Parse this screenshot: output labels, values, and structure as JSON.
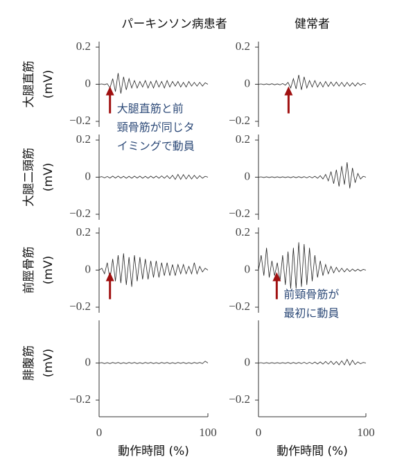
{
  "chart_data": [
    {
      "type": "line",
      "title": "パーキンソン病患者",
      "ylabel": [
        "大腿直筋",
        "(mV)"
      ],
      "color": "#222222",
      "ylim": [
        -0.2,
        0.2
      ],
      "yticks": [
        0.2,
        0,
        {
          "value": -0.2,
          "label": "−0.2"
        }
      ],
      "xlim": [
        0,
        100
      ],
      "x": [
        0,
        2.5,
        5,
        7.5,
        10,
        12.5,
        15,
        17.5,
        20,
        22.5,
        25,
        27.5,
        30,
        32.5,
        35,
        37.5,
        40,
        42.5,
        45,
        47.5,
        50,
        52.5,
        55,
        57.5,
        60,
        62.5,
        65,
        67.5,
        70,
        72.5,
        75,
        77.5,
        80,
        82.5,
        85,
        87.5,
        90,
        92.5,
        95,
        97.5,
        100
      ],
      "values": [
        0,
        0.002,
        -0.002,
        0.003,
        -0.02,
        0.03,
        -0.04,
        0.06,
        -0.05,
        0.04,
        -0.03,
        0.03,
        -0.02,
        0.02,
        -0.02,
        0.015,
        -0.015,
        0.02,
        -0.02,
        0.015,
        -0.02,
        0.02,
        -0.015,
        0.015,
        -0.02,
        0.02,
        -0.015,
        0.015,
        -0.01,
        0.015,
        -0.015,
        0.01,
        -0.015,
        0.015,
        -0.01,
        0.01,
        -0.01,
        0.01,
        -0.01,
        0.008,
        0
      ],
      "annotation": {
        "lines": [
          "大腿直筋と前",
          "頸骨筋が同じタ",
          "イミングで動員"
        ],
        "arrow_x": 10
      }
    },
    {
      "type": "line",
      "title": "健常者",
      "color": "#222222",
      "ylim": [
        -0.2,
        0.2
      ],
      "yticks": [
        0.2,
        0,
        {
          "value": -0.2,
          "label": "−0.2"
        }
      ],
      "xlim": [
        0,
        100
      ],
      "x": [
        0,
        2.5,
        5,
        7.5,
        10,
        12.5,
        15,
        17.5,
        20,
        22.5,
        25,
        27.5,
        30,
        32.5,
        35,
        37.5,
        40,
        42.5,
        45,
        47.5,
        50,
        52.5,
        55,
        57.5,
        60,
        62.5,
        65,
        67.5,
        70,
        72.5,
        75,
        77.5,
        80,
        82.5,
        85,
        87.5,
        90,
        92.5,
        95,
        97.5,
        100
      ],
      "values": [
        0,
        0.002,
        -0.002,
        0.002,
        -0.002,
        0.003,
        -0.003,
        0.002,
        -0.003,
        0.004,
        -0.005,
        0.01,
        -0.02,
        0.03,
        -0.025,
        0.05,
        -0.03,
        0.04,
        -0.02,
        0.02,
        -0.015,
        0.02,
        -0.015,
        0.012,
        -0.015,
        0.015,
        -0.012,
        0.012,
        -0.01,
        0.012,
        -0.01,
        0.01,
        -0.012,
        0.01,
        -0.01,
        0.008,
        -0.01,
        0.008,
        -0.006,
        0.005,
        0
      ],
      "annotation": {
        "arrow_x": 28
      }
    },
    {
      "type": "line",
      "ylabel": [
        "大腿二頭筋",
        "(mV)"
      ],
      "color": "#222222",
      "ylim": [
        -0.2,
        0.2
      ],
      "yticks": [
        0.2,
        0,
        {
          "value": -0.2,
          "label": "−0.2"
        }
      ],
      "xlim": [
        0,
        100
      ],
      "x": [
        0,
        2.5,
        5,
        7.5,
        10,
        12.5,
        15,
        17.5,
        20,
        22.5,
        25,
        27.5,
        30,
        32.5,
        35,
        37.5,
        40,
        42.5,
        45,
        47.5,
        50,
        52.5,
        55,
        57.5,
        60,
        62.5,
        65,
        67.5,
        70,
        72.5,
        75,
        77.5,
        80,
        82.5,
        85,
        87.5,
        90,
        92.5,
        95,
        97.5,
        100
      ],
      "values": [
        0,
        0.003,
        -0.004,
        0.004,
        -0.005,
        0.006,
        -0.005,
        0.006,
        -0.005,
        0.005,
        -0.006,
        0.005,
        -0.006,
        0.006,
        -0.005,
        0.006,
        -0.006,
        0.005,
        -0.006,
        0.006,
        -0.005,
        0.006,
        -0.006,
        0.007,
        -0.006,
        0.008,
        -0.008,
        0.01,
        -0.012,
        0.015,
        -0.012,
        0.014,
        -0.01,
        0.012,
        -0.01,
        0.01,
        -0.008,
        0.008,
        -0.006,
        0.005,
        0
      ]
    },
    {
      "type": "line",
      "color": "#222222",
      "ylim": [
        -0.2,
        0.2
      ],
      "yticks": [
        0.2,
        0,
        {
          "value": -0.2,
          "label": "−0.2"
        }
      ],
      "xlim": [
        0,
        100
      ],
      "x": [
        0,
        2.5,
        5,
        7.5,
        10,
        12.5,
        15,
        17.5,
        20,
        22.5,
        25,
        27.5,
        30,
        32.5,
        35,
        37.5,
        40,
        42.5,
        45,
        47.5,
        50,
        52.5,
        55,
        57.5,
        60,
        62.5,
        65,
        67.5,
        70,
        72.5,
        75,
        77.5,
        80,
        82.5,
        85,
        87.5,
        90,
        92.5,
        95,
        97.5,
        100
      ],
      "values": [
        0,
        0.002,
        -0.002,
        0.002,
        -0.002,
        0.002,
        -0.002,
        0.002,
        -0.002,
        0.002,
        -0.002,
        0.002,
        -0.003,
        0.003,
        -0.003,
        0.003,
        -0.003,
        0.003,
        -0.004,
        0.004,
        -0.004,
        0.005,
        -0.006,
        0.008,
        -0.01,
        0.015,
        -0.02,
        0.03,
        -0.035,
        0.04,
        -0.05,
        0.06,
        -0.04,
        0.08,
        -0.06,
        0.05,
        -0.03,
        0.02,
        -0.01,
        0.005,
        0
      ]
    },
    {
      "type": "line",
      "ylabel": [
        "前脛骨筋",
        "(mV)"
      ],
      "color": "#222222",
      "ylim": [
        -0.2,
        0.2
      ],
      "yticks": [
        0.2,
        0,
        {
          "value": -0.2,
          "label": "−0.2"
        }
      ],
      "xlim": [
        0,
        100
      ],
      "x": [
        0,
        2.5,
        5,
        7.5,
        10,
        12.5,
        15,
        17.5,
        20,
        22.5,
        25,
        27.5,
        30,
        32.5,
        35,
        37.5,
        40,
        42.5,
        45,
        47.5,
        50,
        52.5,
        55,
        57.5,
        60,
        62.5,
        65,
        67.5,
        70,
        72.5,
        75,
        77.5,
        80,
        82.5,
        85,
        87.5,
        90,
        92.5,
        95,
        97.5,
        100
      ],
      "values": [
        0,
        0.01,
        -0.02,
        0.04,
        -0.05,
        0.06,
        -0.06,
        0.08,
        -0.07,
        0.09,
        -0.08,
        0.07,
        -0.09,
        0.08,
        -0.06,
        0.07,
        -0.05,
        0.06,
        -0.05,
        0.05,
        -0.04,
        0.05,
        -0.04,
        0.04,
        -0.03,
        0.04,
        -0.03,
        0.03,
        -0.03,
        0.03,
        -0.02,
        0.03,
        -0.02,
        0.02,
        -0.02,
        0.04,
        -0.02,
        0.02,
        -0.01,
        0.01,
        0
      ],
      "annotation": {
        "arrow_x": 10
      }
    },
    {
      "type": "line",
      "color": "#222222",
      "ylim": [
        -0.2,
        0.2
      ],
      "yticks": [
        0.2,
        0,
        {
          "value": -0.2,
          "label": "−0.2"
        }
      ],
      "xlim": [
        0,
        100
      ],
      "x": [
        0,
        2.5,
        5,
        7.5,
        10,
        12.5,
        15,
        17.5,
        20,
        22.5,
        25,
        27.5,
        30,
        32.5,
        35,
        37.5,
        40,
        42.5,
        45,
        47.5,
        50,
        52.5,
        55,
        57.5,
        60,
        62.5,
        65,
        67.5,
        70,
        72.5,
        75,
        77.5,
        80,
        82.5,
        85,
        87.5,
        90,
        92.5,
        95,
        97.5,
        100
      ],
      "values": [
        0,
        0.08,
        -0.03,
        0.12,
        -0.04,
        0.05,
        -0.03,
        0.04,
        -0.06,
        0.08,
        -0.08,
        0.1,
        -0.1,
        0.12,
        -0.1,
        0.15,
        -0.09,
        0.14,
        -0.08,
        0.12,
        -0.06,
        0.08,
        -0.04,
        0.05,
        -0.03,
        0.03,
        -0.02,
        0.02,
        -0.015,
        0.015,
        -0.01,
        0.01,
        -0.01,
        0.008,
        -0.008,
        0.006,
        -0.006,
        0.005,
        -0.005,
        0.004,
        0
      ],
      "annotation": {
        "lines": [
          "前頸骨筋が",
          "最初に動員"
        ],
        "arrow_x": 17
      }
    },
    {
      "type": "line",
      "ylabel": [
        "腓腹筋",
        "(mV)"
      ],
      "xlabel": "動作時間 (%)",
      "color": "#222222",
      "ylim": [
        -0.2,
        0.2
      ],
      "yticks": [
        0,
        {
          "value": -0.2,
          "label": "−0.2"
        }
      ],
      "xlim": [
        0,
        100
      ],
      "xticks": [
        0,
        100
      ],
      "x": [
        0,
        2.5,
        5,
        7.5,
        10,
        12.5,
        15,
        17.5,
        20,
        22.5,
        25,
        27.5,
        30,
        32.5,
        35,
        37.5,
        40,
        42.5,
        45,
        47.5,
        50,
        52.5,
        55,
        57.5,
        60,
        62.5,
        65,
        67.5,
        70,
        72.5,
        75,
        77.5,
        80,
        82.5,
        85,
        87.5,
        90,
        92.5,
        95,
        97.5,
        100
      ],
      "values": [
        0,
        0.002,
        -0.003,
        0.002,
        -0.003,
        0.003,
        -0.002,
        0.003,
        -0.003,
        0.002,
        -0.003,
        0.003,
        -0.002,
        0.003,
        -0.003,
        0.002,
        -0.003,
        0.003,
        -0.002,
        0.003,
        -0.003,
        0.002,
        -0.003,
        0.003,
        -0.002,
        0.003,
        -0.003,
        0.002,
        -0.003,
        0.003,
        -0.002,
        0.003,
        -0.003,
        0.002,
        -0.003,
        0.003,
        -0.002,
        0.003,
        -0.003,
        0.01,
        0
      ]
    },
    {
      "type": "line",
      "xlabel": "動作時間 (%)",
      "color": "#222222",
      "ylim": [
        -0.2,
        0.2
      ],
      "yticks": [
        0,
        {
          "value": -0.2,
          "label": "−0.2"
        }
      ],
      "xlim": [
        0,
        100
      ],
      "xticks": [
        0,
        100
      ],
      "x": [
        0,
        2.5,
        5,
        7.5,
        10,
        12.5,
        15,
        17.5,
        20,
        22.5,
        25,
        27.5,
        30,
        32.5,
        35,
        37.5,
        40,
        42.5,
        45,
        47.5,
        50,
        52.5,
        55,
        57.5,
        60,
        62.5,
        65,
        67.5,
        70,
        72.5,
        75,
        77.5,
        80,
        82.5,
        85,
        87.5,
        90,
        92.5,
        95,
        97.5,
        100
      ],
      "values": [
        0,
        0.002,
        -0.002,
        0.002,
        -0.002,
        0.002,
        -0.002,
        0.002,
        -0.002,
        0.002,
        -0.002,
        0.003,
        -0.003,
        0.003,
        -0.003,
        0.003,
        -0.003,
        0.004,
        -0.004,
        0.004,
        -0.004,
        0.005,
        -0.005,
        0.006,
        -0.006,
        0.008,
        -0.006,
        0.01,
        -0.008,
        0.008,
        -0.01,
        0.012,
        -0.01,
        0.02,
        -0.012,
        0.015,
        -0.008,
        0.006,
        -0.004,
        0.003,
        0
      ]
    }
  ]
}
